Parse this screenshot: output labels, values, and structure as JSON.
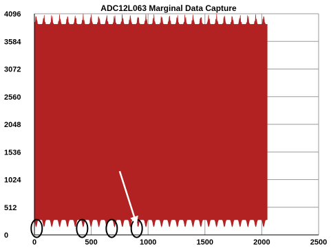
{
  "chart_data": {
    "type": "line",
    "title": "ADC12L063 Marginal Data Capture",
    "xlabel": "",
    "ylabel": "",
    "xlim": [
      0,
      2500
    ],
    "ylim": [
      0,
      4096
    ],
    "x_ticks": [
      "0",
      "500",
      "1000",
      "1500",
      "2000",
      "2500"
    ],
    "y_ticks": [
      "0",
      "512",
      "1024",
      "1536",
      "2048",
      "2560",
      "3072",
      "3584",
      "4096"
    ],
    "grid": true,
    "legend": "none",
    "series": [
      {
        "x_range": [
          0,
          2048
        ],
        "typical_max": 3900,
        "peak_max": 4096,
        "typical_min": 280,
        "dip_min": 150,
        "color": "#b22222"
      }
    ],
    "annotations": {
      "ellipses_x": [
        20,
        420,
        680,
        900
      ],
      "arrow_tail": [
        750,
        1180
      ],
      "arrow_head": [
        900,
        190
      ]
    }
  }
}
